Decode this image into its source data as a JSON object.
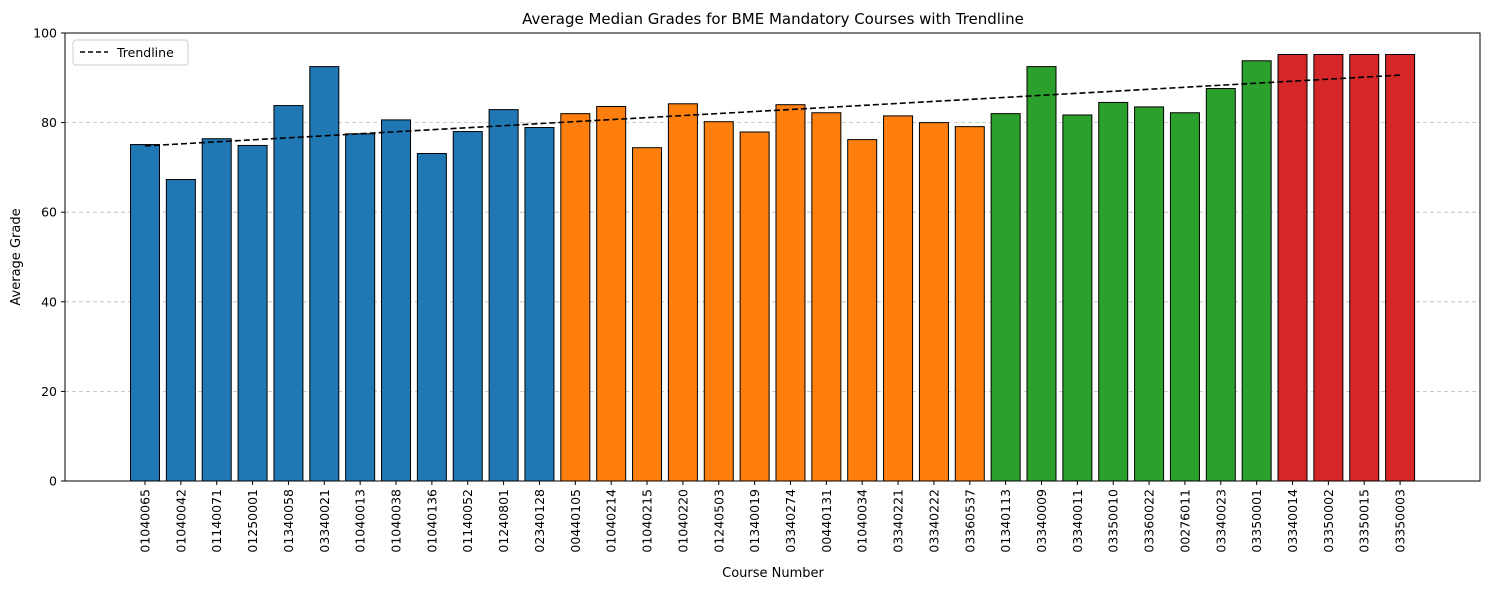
{
  "chart_data": {
    "type": "bar",
    "title": "Average Median Grades for BME Mandatory Courses with Trendline",
    "xlabel": "Course Number",
    "ylabel": "Average Grade",
    "ylim": [
      0,
      100
    ],
    "yticks": [
      0,
      20,
      40,
      60,
      80,
      100
    ],
    "grid": "horizontal dashed",
    "legend": {
      "position": "top-left",
      "entries": [
        "Trendline"
      ]
    },
    "categories": [
      "01040065",
      "01040042",
      "01140071",
      "01250001",
      "01340058",
      "03340021",
      "01040013",
      "01040038",
      "01040136",
      "01140052",
      "01240801",
      "02340128",
      "00440105",
      "01040214",
      "01040215",
      "01040220",
      "01240503",
      "01340019",
      "03340274",
      "00440131",
      "01040034",
      "03340221",
      "03340222",
      "03360537",
      "01340113",
      "03340009",
      "03340011",
      "03350010",
      "03360022",
      "00276011",
      "03340023",
      "03350001",
      "03340014",
      "03350002",
      "03350015",
      "03350003"
    ],
    "values": [
      75.1,
      67.3,
      76.4,
      74.9,
      83.8,
      92.5,
      77.5,
      80.6,
      73.1,
      78.0,
      82.9,
      78.9,
      82.0,
      83.6,
      74.4,
      84.2,
      80.2,
      77.9,
      84.0,
      82.2,
      76.2,
      81.5,
      80.0,
      79.1,
      82.0,
      92.5,
      81.7,
      84.5,
      83.5,
      82.2,
      87.6,
      93.8,
      95.2,
      95.2,
      95.2,
      95.2
    ],
    "group_colors": [
      "#1f77b4",
      "#1f77b4",
      "#1f77b4",
      "#1f77b4",
      "#1f77b4",
      "#1f77b4",
      "#1f77b4",
      "#1f77b4",
      "#1f77b4",
      "#1f77b4",
      "#1f77b4",
      "#1f77b4",
      "#ff7f0e",
      "#ff7f0e",
      "#ff7f0e",
      "#ff7f0e",
      "#ff7f0e",
      "#ff7f0e",
      "#ff7f0e",
      "#ff7f0e",
      "#ff7f0e",
      "#ff7f0e",
      "#ff7f0e",
      "#ff7f0e",
      "#2ca02c",
      "#2ca02c",
      "#2ca02c",
      "#2ca02c",
      "#2ca02c",
      "#2ca02c",
      "#2ca02c",
      "#2ca02c",
      "#d62728",
      "#d62728",
      "#d62728",
      "#d62728"
    ],
    "trendline": {
      "name": "Trendline",
      "start": 74.8,
      "end": 90.6,
      "color": "#000000",
      "style": "dashed"
    }
  }
}
